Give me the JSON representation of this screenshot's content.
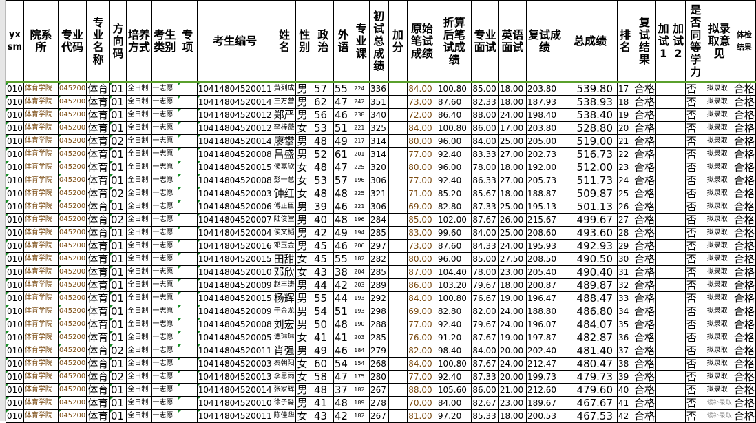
{
  "headers": [
    "yx sm",
    "院系所",
    "专业代码",
    "专业名称",
    "方向码",
    "培养方式",
    "考生类别",
    "专项",
    "考生编号",
    "姓名",
    "性别",
    "政治",
    "外语",
    "专业课",
    "初试总成绩",
    "加分",
    "原始笔试成绩",
    "折算后笔试成绩",
    "专业面试",
    "英语面试",
    "复试成绩",
    "总成绩",
    "排名",
    "复试结果",
    "加试1",
    "加试2",
    "是否同等学力",
    "拟录取意见",
    "体检结果"
  ],
  "common": {
    "yxsm": "010",
    "dept": "体育学院",
    "code": "045200",
    "major": "体育",
    "mode": "全日制",
    "type": "一志愿",
    "retest": "合格",
    "equiv": "否",
    "health": "合格"
  },
  "rows": [
    [
      "01",
      "10414804520011",
      "黄列成",
      "男",
      "57",
      "55",
      "224",
      "336",
      "84.00",
      "100.80",
      "85.00",
      "18.00",
      "203.80",
      "539.80",
      "17",
      "拟录取"
    ],
    [
      "01",
      "10414804520014",
      "王万营",
      "男",
      "62",
      "47",
      "242",
      "351",
      "73.00",
      "87.60",
      "82.33",
      "18.00",
      "187.93",
      "538.93",
      "18",
      "拟录取"
    ],
    [
      "01",
      "10414804520012",
      "郑严",
      "男",
      "56",
      "46",
      "238",
      "340",
      "72.00",
      "86.40",
      "88.00",
      "24.00",
      "198.40",
      "538.40",
      "19",
      "拟录取"
    ],
    [
      "01",
      "10414804520012",
      "李梓薇",
      "女",
      "53",
      "51",
      "221",
      "325",
      "84.00",
      "100.80",
      "86.00",
      "17.00",
      "203.80",
      "528.80",
      "20",
      "拟录取"
    ],
    [
      "02",
      "10414804520014",
      "廖攀",
      "男",
      "48",
      "49",
      "217",
      "314",
      "80.00",
      "96.00",
      "84.00",
      "25.00",
      "205.00",
      "519.00",
      "21",
      "拟录取"
    ],
    [
      "01",
      "10414804520008",
      "吕盛",
      "男",
      "52",
      "61",
      "201",
      "314",
      "77.00",
      "92.40",
      "83.33",
      "27.00",
      "202.73",
      "516.73",
      "22",
      "拟录取"
    ],
    [
      "01",
      "10414804520015",
      "侯嘉欣",
      "女",
      "48",
      "47",
      "225",
      "320",
      "80.00",
      "96.00",
      "78.00",
      "18.00",
      "192.00",
      "512.00",
      "23",
      "拟录取"
    ],
    [
      "01",
      "10414804520008",
      "彭一慧",
      "女",
      "53",
      "57",
      "196",
      "306",
      "77.00",
      "92.40",
      "86.33",
      "27.00",
      "205.73",
      "511.73",
      "24",
      "拟录取"
    ],
    [
      "02",
      "10414804520003",
      "钟红",
      "女",
      "48",
      "48",
      "225",
      "321",
      "71.00",
      "85.20",
      "85.67",
      "18.00",
      "188.87",
      "509.87",
      "25",
      "拟录取"
    ],
    [
      "01",
      "10414804520006",
      "傅正臣",
      "男",
      "39",
      "46",
      "221",
      "306",
      "69.00",
      "82.80",
      "87.33",
      "25.00",
      "195.13",
      "501.13",
      "26",
      "拟录取"
    ],
    [
      "02",
      "10414804520007",
      "陆俊堂",
      "男",
      "40",
      "48",
      "196",
      "284",
      "85.00",
      "102.00",
      "87.67",
      "26.00",
      "215.67",
      "499.67",
      "27",
      "拟录取"
    ],
    [
      "01",
      "10414804520004",
      "侯文韬",
      "男",
      "42",
      "49",
      "194",
      "285",
      "83.00",
      "99.60",
      "84.00",
      "25.00",
      "208.60",
      "493.60",
      "28",
      "拟录取"
    ],
    [
      "01",
      "10414804520016",
      "邓玉金",
      "男",
      "45",
      "46",
      "206",
      "297",
      "73.00",
      "87.60",
      "84.33",
      "24.00",
      "195.93",
      "492.93",
      "29",
      "拟录取"
    ],
    [
      "01",
      "10414804520015",
      "田甜",
      "女",
      "45",
      "55",
      "182",
      "282",
      "80.00",
      "96.00",
      "85.00",
      "27.50",
      "208.50",
      "490.50",
      "30",
      "拟录取"
    ],
    [
      "01",
      "10414804520010",
      "邓欣",
      "女",
      "43",
      "38",
      "204",
      "285",
      "87.00",
      "104.40",
      "78.00",
      "23.00",
      "205.40",
      "490.40",
      "31",
      "拟录取"
    ],
    [
      "01",
      "10414804520009",
      "赵丰涛",
      "男",
      "44",
      "42",
      "203",
      "289",
      "86.00",
      "103.20",
      "79.67",
      "18.00",
      "200.87",
      "489.87",
      "32",
      "拟录取"
    ],
    [
      "01",
      "10414804520015",
      "杨辉",
      "男",
      "55",
      "44",
      "193",
      "292",
      "84.00",
      "100.80",
      "76.67",
      "19.00",
      "196.47",
      "488.47",
      "33",
      "拟录取"
    ],
    [
      "01",
      "10414804520009",
      "于金龙",
      "男",
      "54",
      "51",
      "193",
      "298",
      "69.00",
      "82.80",
      "82.00",
      "24.00",
      "188.80",
      "486.80",
      "34",
      "拟录取"
    ],
    [
      "01",
      "10414804520008",
      "刘宏",
      "男",
      "50",
      "48",
      "190",
      "288",
      "77.00",
      "92.40",
      "79.67",
      "24.00",
      "196.07",
      "484.07",
      "35",
      "拟录取"
    ],
    [
      "01",
      "10414804520005",
      "谭琳琳",
      "女",
      "41",
      "41",
      "203",
      "285",
      "76.00",
      "91.20",
      "87.67",
      "19.00",
      "197.87",
      "482.87",
      "36",
      "拟录取"
    ],
    [
      "02",
      "10414804520011",
      "肖强",
      "男",
      "49",
      "46",
      "184",
      "279",
      "82.00",
      "98.40",
      "84.00",
      "20.00",
      "202.40",
      "481.40",
      "37",
      "拟录取"
    ],
    [
      "01",
      "10414804520003",
      "秦朝阳",
      "女",
      "60",
      "54",
      "154",
      "268",
      "84.00",
      "100.80",
      "87.67",
      "24.00",
      "212.47",
      "480.47",
      "38",
      "拟录取"
    ],
    [
      "02",
      "10414804520013",
      "李思雨",
      "女",
      "58",
      "47",
      "175",
      "280",
      "77.00",
      "92.40",
      "87.33",
      "20.00",
      "199.73",
      "479.73",
      "39",
      "拟录取"
    ],
    [
      "01",
      "10414804520014",
      "张家辉",
      "男",
      "48",
      "37",
      "182",
      "267",
      "88.00",
      "105.60",
      "86.00",
      "21.00",
      "212.60",
      "479.60",
      "40",
      "拟录取"
    ],
    [
      "01",
      "10414804520010",
      "徐子淼",
      "男",
      "41",
      "48",
      "189",
      "278",
      "70.00",
      "84.00",
      "82.67",
      "23.00",
      "189.67",
      "467.67",
      "41",
      "候补录取"
    ],
    [
      "01",
      "10414804520011",
      "陈佳华",
      "女",
      "43",
      "42",
      "182",
      "267",
      "81.00",
      "97.20",
      "85.33",
      "18.00",
      "200.53",
      "467.53",
      "42",
      "候补录取"
    ]
  ]
}
